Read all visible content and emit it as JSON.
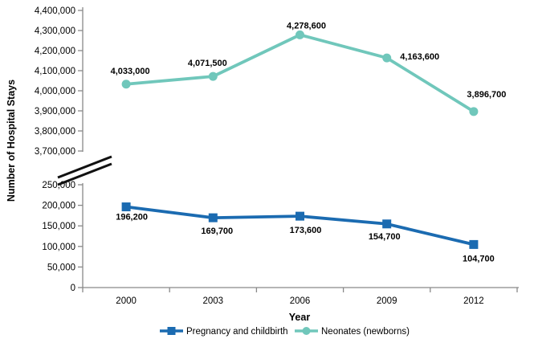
{
  "chart_data": {
    "type": "line",
    "title": "",
    "xlabel": "Year",
    "ylabel": "Number of Hospital Stays",
    "categories": [
      "2000",
      "2003",
      "2006",
      "2009",
      "2012"
    ],
    "series": [
      {
        "name": "Pregnancy and childbirth",
        "axis": "lower",
        "marker": "square",
        "color": "#1B6BB1",
        "values": [
          196200,
          169700,
          173600,
          154700,
          104700
        ],
        "data_labels": [
          "196,200",
          "169,700",
          "173,600",
          "154,700",
          "104,700"
        ]
      },
      {
        "name": "Neonates (newborns)",
        "axis": "upper",
        "marker": "circle",
        "color": "#70C7BB",
        "values": [
          4033000,
          4071500,
          4278600,
          4163600,
          3896700
        ],
        "data_labels": [
          "4,033,000",
          "4,071,500",
          "4,278,600",
          "4,163,600",
          "3,896,700"
        ]
      }
    ],
    "axis_break": true,
    "upper_axis": {
      "range": [
        3700000,
        4400000
      ],
      "tick_step": 100000,
      "tick_labels": [
        "4,400,000",
        "4,300,000",
        "4,200,000",
        "4,100,000",
        "4,000,000",
        "3,900,000",
        "3,800,000",
        "3,700,000"
      ]
    },
    "lower_axis": {
      "range": [
        0,
        250000
      ],
      "tick_step": 50000,
      "tick_labels": [
        "250,000",
        "200,000",
        "150,000",
        "100,000",
        "50,000",
        "0"
      ]
    },
    "grid": false,
    "legend_position": "bottom",
    "colors": {
      "axis_line": "#898989",
      "text": "#000000",
      "break_marks": "#111111",
      "background": "#ffffff"
    }
  }
}
